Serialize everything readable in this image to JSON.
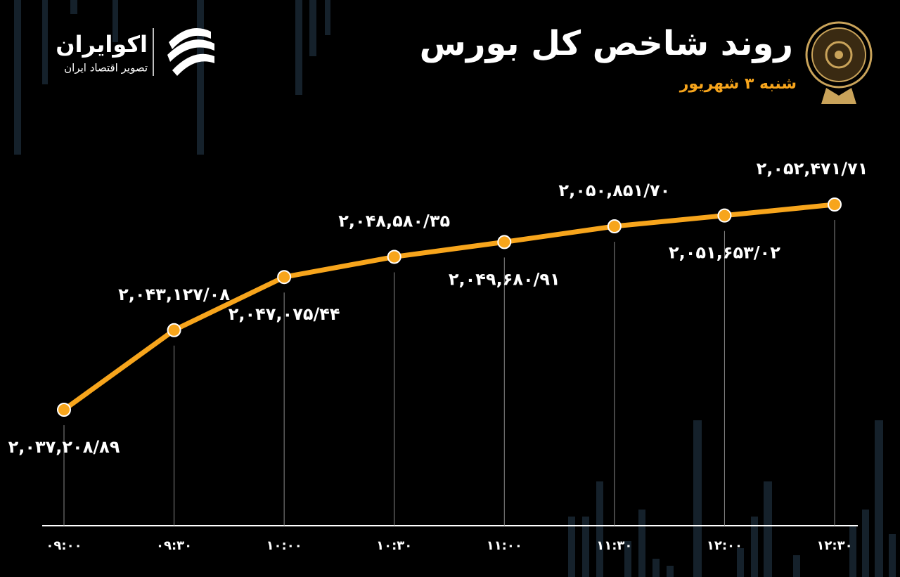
{
  "chart_data": {
    "type": "line",
    "title": "روند شاخص کل بورس",
    "subtitle": "شنبه ۳ شهریور",
    "brand": "اکوایران",
    "brand_tagline": "تصویر اقتصاد ایران",
    "categories": [
      "۰۹:۰۰",
      "۰۹:۳۰",
      "۱۰:۰۰",
      "۱۰:۳۰",
      "۱۱:۰۰",
      "۱۱:۳۰",
      "۱۲:۰۰",
      "۱۲:۳۰"
    ],
    "series": [
      {
        "name": "شاخص کل",
        "color": "#f7a51c",
        "values": [
          2037208.89,
          2043127.08,
          2047075.44,
          2048580.35,
          2049680.91,
          2050851.7,
          2051653.02,
          2052471.71
        ],
        "value_labels": [
          "۲,۰۳۷,۲۰۸/۸۹",
          "۲,۰۴۳,۱۲۷/۰۸",
          "۲,۰۴۷,۰۷۵/۴۴",
          "۲,۰۴۸,۵۸۰/۳۵",
          "۲,۰۴۹,۶۸۰/۹۱",
          "۲,۰۵۰,۸۵۱/۷۰",
          "۲,۰۵۱,۶۵۳/۰۲",
          "۲,۰۵۲,۴۷۱/۷۱"
        ]
      }
    ]
  }
}
